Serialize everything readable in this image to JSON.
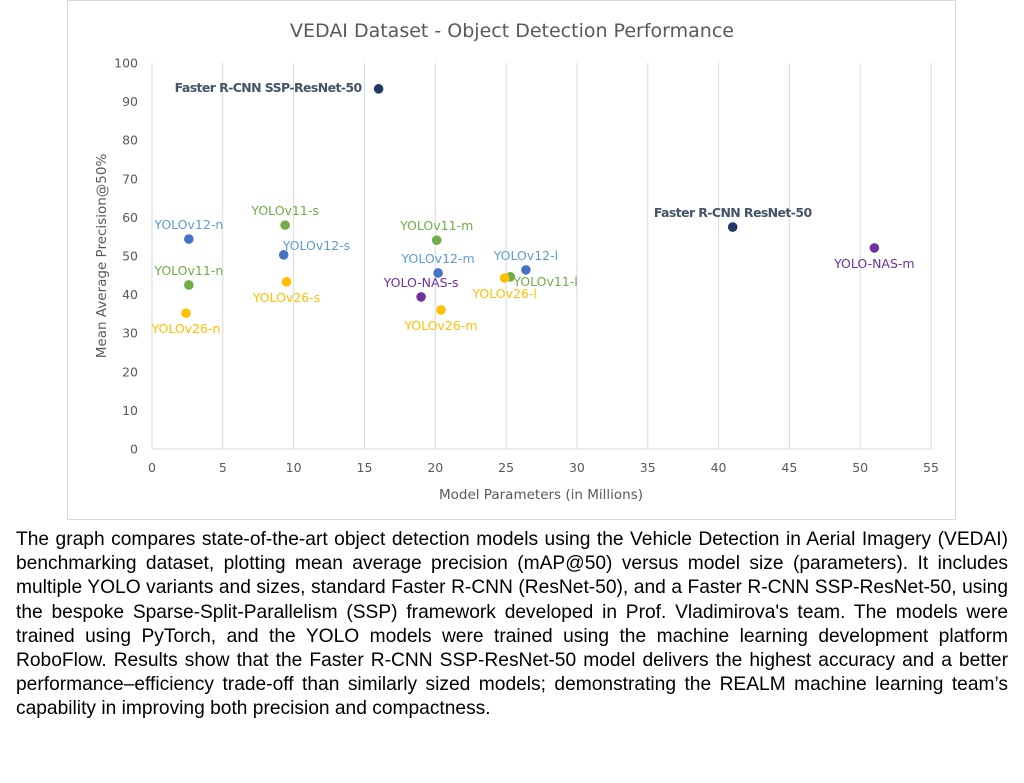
{
  "chart_data": {
    "type": "scatter",
    "title": "VEDAI Dataset - Object Detection Performance",
    "xlabel": "Model Parameters (in Millions)",
    "ylabel": "Mean Average Precision@50%",
    "xlim": [
      0,
      55
    ],
    "ylim": [
      0,
      100
    ],
    "xticks": [
      0,
      5,
      10,
      15,
      20,
      25,
      30,
      35,
      40,
      45,
      50,
      55
    ],
    "yticks": [
      0,
      10,
      20,
      30,
      40,
      50,
      60,
      70,
      80,
      90,
      100
    ],
    "grid": "vertical",
    "legend": "none",
    "colors": {
      "yolov12": "#4472c4",
      "yolov11": "#70ad47",
      "yolov26": "#ffc000",
      "yolonas": "#7030a0",
      "frcnn": "#203864",
      "label_yolov12": "#5b9bd5",
      "label_frcnn": "#44546a"
    },
    "points": [
      {
        "label": "Faster R-CNN SSP-ResNet-50",
        "x": 16.0,
        "y": 93.3,
        "group": "frcnn",
        "anchor": "left",
        "bold": true
      },
      {
        "label": "Faster R-CNN ResNet-50",
        "x": 41.0,
        "y": 57.5,
        "group": "frcnn",
        "anchor": "above",
        "bold": true
      },
      {
        "label": "YOLO-NAS-m",
        "x": 51.0,
        "y": 52.1,
        "group": "yolonas",
        "anchor": "below"
      },
      {
        "label": "YOLO-NAS-s",
        "x": 19.0,
        "y": 39.4,
        "group": "yolonas",
        "anchor": "above"
      },
      {
        "label": "YOLOv12-n",
        "x": 2.6,
        "y": 54.4,
        "group": "yolov12",
        "anchor": "above"
      },
      {
        "label": "YOLOv11-n",
        "x": 2.6,
        "y": 42.5,
        "group": "yolov11",
        "anchor": "above"
      },
      {
        "label": "YOLOv26-n",
        "x": 2.4,
        "y": 35.2,
        "group": "yolov26",
        "anchor": "below"
      },
      {
        "label": "YOLOv11-s",
        "x": 9.4,
        "y": 58.0,
        "group": "yolov11",
        "anchor": "above"
      },
      {
        "label": "YOLOv12-s",
        "x": 9.3,
        "y": 50.3,
        "group": "yolov12",
        "anchor": "right-up"
      },
      {
        "label": "YOLOv26-s",
        "x": 9.5,
        "y": 43.3,
        "group": "yolov26",
        "anchor": "below"
      },
      {
        "label": "YOLOv11-m",
        "x": 20.1,
        "y": 54.1,
        "group": "yolov11",
        "anchor": "above"
      },
      {
        "label": "YOLOv12-m",
        "x": 20.2,
        "y": 45.6,
        "group": "yolov12",
        "anchor": "above"
      },
      {
        "label": "YOLOv26-m",
        "x": 20.4,
        "y": 36.0,
        "group": "yolov26",
        "anchor": "below"
      },
      {
        "label": "YOLOv12-l",
        "x": 26.4,
        "y": 46.4,
        "group": "yolov12",
        "anchor": "above"
      },
      {
        "label": "YOLOv11-l",
        "x": 25.3,
        "y": 44.6,
        "group": "yolov11",
        "anchor": "right"
      },
      {
        "label": "YOLOv26-l",
        "x": 24.9,
        "y": 44.3,
        "group": "yolov26",
        "anchor": "below"
      }
    ]
  },
  "caption": "The graph compares state-of-the-art object detection models using the Vehicle Detection in Aerial Imagery (VEDAI) benchmarking dataset, plotting mean average precision (mAP@50) versus model size (parameters). It includes multiple YOLO variants and sizes, standard Faster R-CNN (ResNet-50), and a Faster R-CNN SSP-ResNet-50, using the bespoke Sparse-Split-Parallelism (SSP) framework developed in Prof. Vladimirova's team. The models were trained using PyTorch, and the YOLO models were trained using the machine learning development platform RoboFlow. Results show that the Faster R-CNN SSP-ResNet-50 model delivers the highest accuracy and a better performance–efficiency trade-off than similarly sized models; demonstrating the REALM machine learning team’s capability in improving both precision and compactness."
}
